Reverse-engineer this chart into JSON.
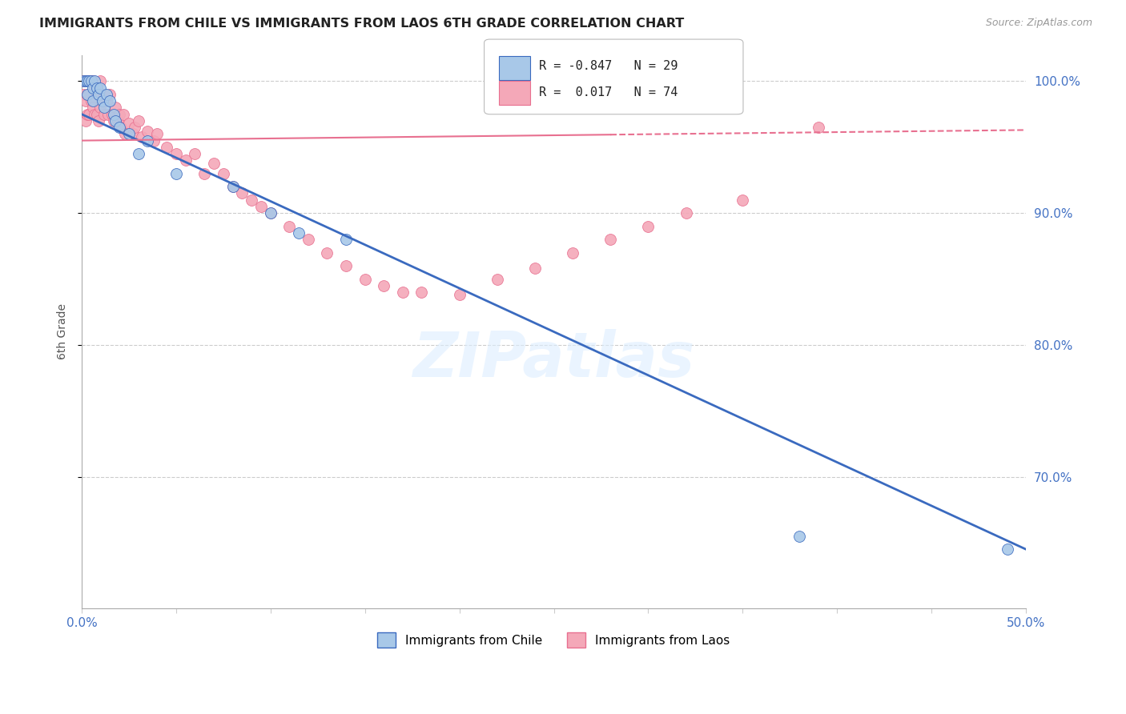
{
  "title": "IMMIGRANTS FROM CHILE VS IMMIGRANTS FROM LAOS 6TH GRADE CORRELATION CHART",
  "source": "Source: ZipAtlas.com",
  "ylabel": "6th Grade",
  "xmin": 0.0,
  "xmax": 0.5,
  "ymin": 0.6,
  "ymax": 1.02,
  "yticks": [
    0.7,
    0.8,
    0.9,
    1.0
  ],
  "ytick_labels": [
    "70.0%",
    "80.0%",
    "90.0%",
    "100.0%"
  ],
  "chile_R": -0.847,
  "chile_N": 29,
  "laos_R": 0.017,
  "laos_N": 74,
  "chile_color": "#a8c8e8",
  "laos_color": "#f4a8b8",
  "chile_line_color": "#3a6abf",
  "laos_line_color": "#e87090",
  "watermark": "ZIPatlas",
  "chile_line_x0": 0.0,
  "chile_line_y0": 0.975,
  "chile_line_x1": 0.5,
  "chile_line_y1": 0.645,
  "laos_line_x0": 0.0,
  "laos_line_y0": 0.955,
  "laos_line_x1": 0.5,
  "laos_line_y1": 0.963,
  "laos_line_solid_end": 0.28,
  "chile_points_x": [
    0.001,
    0.002,
    0.003,
    0.003,
    0.004,
    0.005,
    0.006,
    0.006,
    0.007,
    0.008,
    0.009,
    0.01,
    0.011,
    0.012,
    0.013,
    0.015,
    0.017,
    0.018,
    0.02,
    0.025,
    0.03,
    0.035,
    0.05,
    0.08,
    0.1,
    0.115,
    0.14,
    0.38,
    0.49
  ],
  "chile_points_y": [
    1.0,
    1.0,
    1.0,
    0.99,
    1.0,
    1.0,
    0.995,
    0.985,
    1.0,
    0.995,
    0.99,
    0.995,
    0.985,
    0.98,
    0.99,
    0.985,
    0.975,
    0.97,
    0.965,
    0.96,
    0.945,
    0.955,
    0.93,
    0.92,
    0.9,
    0.885,
    0.88,
    0.655,
    0.645
  ],
  "laos_points_x": [
    0.001,
    0.001,
    0.002,
    0.002,
    0.002,
    0.003,
    0.003,
    0.003,
    0.004,
    0.004,
    0.004,
    0.005,
    0.005,
    0.006,
    0.006,
    0.007,
    0.007,
    0.008,
    0.008,
    0.009,
    0.009,
    0.01,
    0.01,
    0.011,
    0.012,
    0.012,
    0.013,
    0.014,
    0.015,
    0.016,
    0.017,
    0.018,
    0.019,
    0.02,
    0.021,
    0.022,
    0.023,
    0.025,
    0.027,
    0.028,
    0.03,
    0.032,
    0.035,
    0.038,
    0.04,
    0.045,
    0.05,
    0.055,
    0.06,
    0.065,
    0.07,
    0.075,
    0.08,
    0.085,
    0.09,
    0.095,
    0.1,
    0.11,
    0.12,
    0.13,
    0.14,
    0.15,
    0.16,
    0.17,
    0.18,
    0.2,
    0.22,
    0.24,
    0.26,
    0.28,
    0.3,
    0.32,
    0.35,
    0.39
  ],
  "laos_points_y": [
    1.0,
    0.99,
    1.0,
    0.985,
    0.97,
    1.0,
    0.99,
    0.975,
    1.0,
    0.99,
    0.975,
    1.0,
    0.985,
    1.0,
    0.98,
    0.995,
    0.975,
    0.995,
    0.975,
    0.99,
    0.97,
    1.0,
    0.98,
    0.985,
    0.99,
    0.975,
    0.985,
    0.975,
    0.99,
    0.975,
    0.97,
    0.98,
    0.97,
    0.975,
    0.965,
    0.975,
    0.96,
    0.968,
    0.96,
    0.965,
    0.97,
    0.958,
    0.962,
    0.955,
    0.96,
    0.95,
    0.945,
    0.94,
    0.945,
    0.93,
    0.938,
    0.93,
    0.92,
    0.915,
    0.91,
    0.905,
    0.9,
    0.89,
    0.88,
    0.87,
    0.86,
    0.85,
    0.845,
    0.84,
    0.84,
    0.838,
    0.85,
    0.858,
    0.87,
    0.88,
    0.89,
    0.9,
    0.91,
    0.965
  ]
}
